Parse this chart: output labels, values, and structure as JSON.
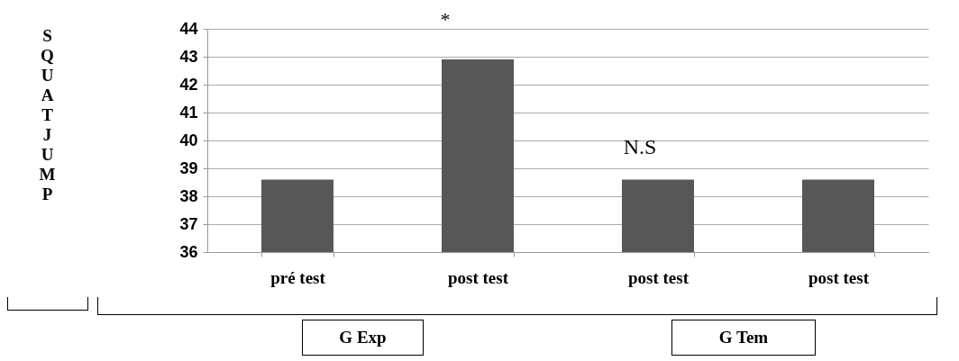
{
  "chart_data": {
    "type": "bar",
    "ylabel": "SQUAT JUMP",
    "categories": [
      "pré test",
      "post test",
      "post test",
      "post test"
    ],
    "values": [
      38.6,
      42.9,
      38.6,
      38.6
    ],
    "color": "#575757",
    "ylim": [
      36,
      44
    ],
    "yticks": [
      36,
      37,
      38,
      39,
      40,
      41,
      42,
      43,
      44
    ],
    "grid": "y",
    "annotations": [
      "*",
      "N.S",
      "G Exp",
      "G Tem"
    ]
  }
}
